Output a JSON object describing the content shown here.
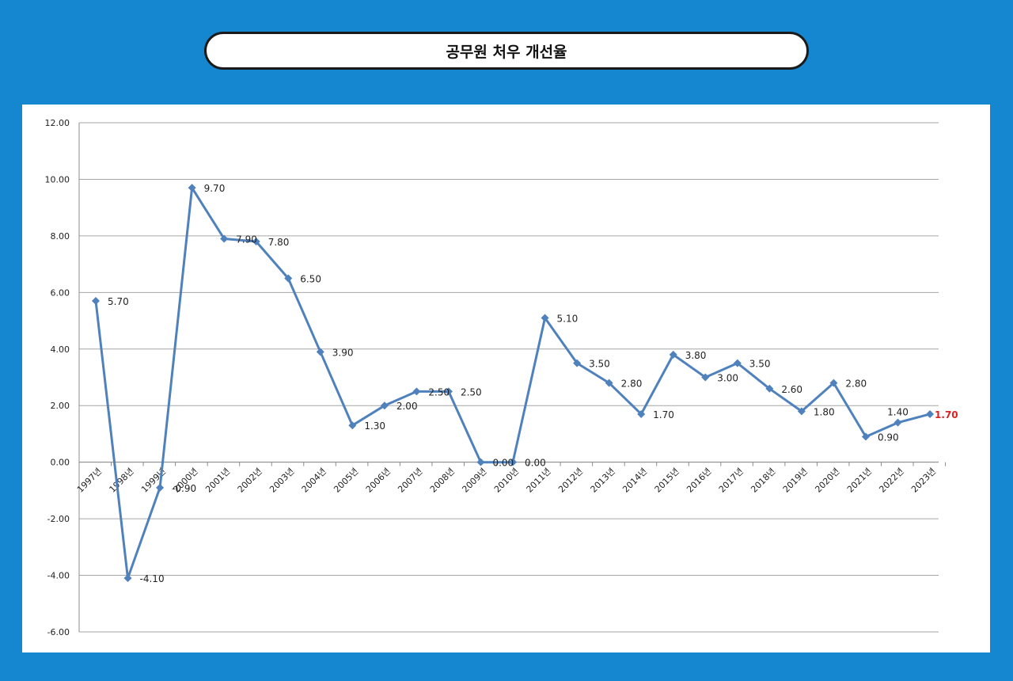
{
  "page": {
    "title": "공무원 처우 개선율",
    "background_color": "#1487d0"
  },
  "chart_data": {
    "type": "line",
    "categories": [
      "1997년",
      "1998년",
      "1999년",
      "2000년",
      "2001년",
      "2002년",
      "2003년",
      "2004년",
      "2005년",
      "2006년",
      "2007년",
      "2008년",
      "2009년",
      "2010년",
      "2011년",
      "2012년",
      "2013년",
      "2014년",
      "2015년",
      "2016년",
      "2017년",
      "2018년",
      "2019년",
      "2020년",
      "2021년",
      "2022년",
      "2023년"
    ],
    "series": [
      {
        "values": [
          5.7,
          -4.1,
          -0.9,
          9.7,
          7.9,
          7.8,
          6.5,
          3.9,
          1.3,
          2.0,
          2.5,
          2.5,
          0.0,
          0.0,
          5.1,
          3.5,
          2.8,
          1.7,
          3.8,
          3.0,
          3.5,
          2.6,
          1.8,
          2.8,
          0.9,
          1.4,
          1.7
        ],
        "data_labels": [
          "5.70",
          "-4.10",
          "-0.90",
          "9.70",
          "7.90",
          "7.80",
          "6.50",
          "3.90",
          "1.30",
          "2.00",
          "2.50",
          "2.50",
          "0.00",
          "0.00",
          "5.10",
          "3.50",
          "2.80",
          "1.70",
          "3.80",
          "3.00",
          "3.50",
          "2.60",
          "1.80",
          "2.80",
          "0.90",
          "1.40",
          "1.70"
        ],
        "color": "#4f81bd"
      }
    ],
    "ylim": [
      -6,
      12
    ],
    "y_ticks": [
      "12.00",
      "10.00",
      "8.00",
      "6.00",
      "4.00",
      "2.00",
      "0.00",
      "-2.00",
      "-4.00",
      "-6.00"
    ],
    "title": "",
    "xlabel": "",
    "ylabel": "",
    "grid": true,
    "legend": "none",
    "highlight_last_label_color": "#e02020"
  }
}
